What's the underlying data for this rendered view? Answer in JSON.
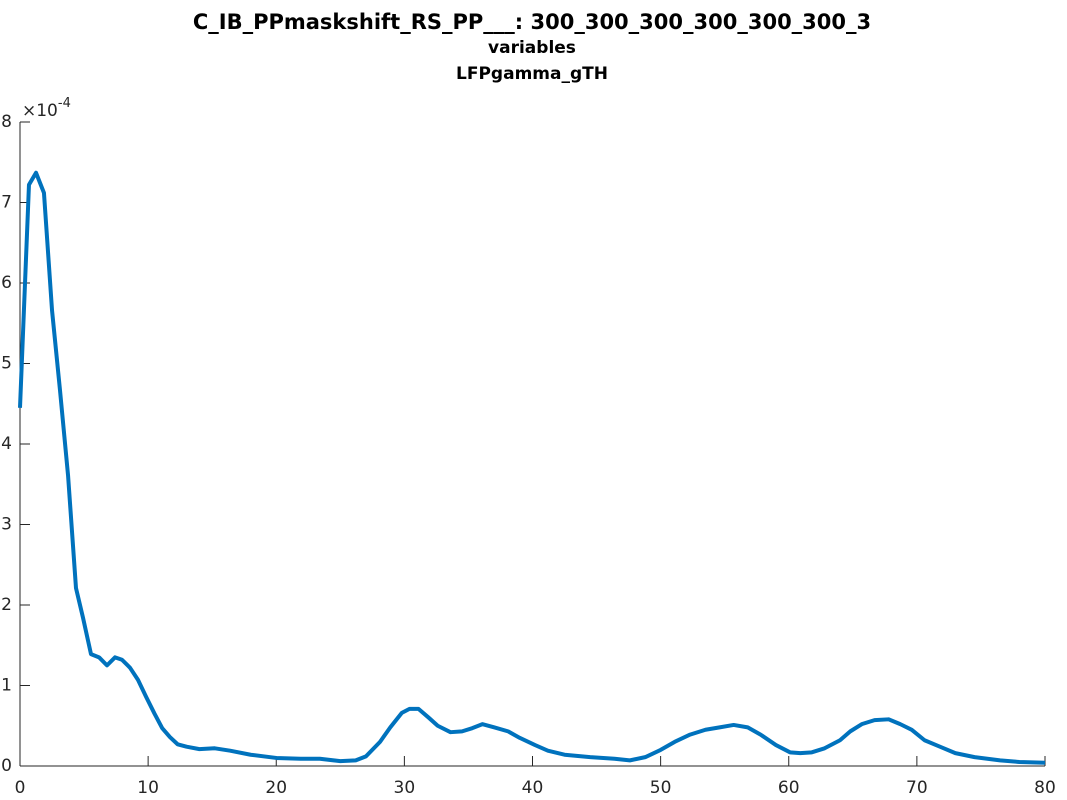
{
  "chart_data": {
    "type": "line",
    "title": "C_IB_PPmaskshift_RS_PP___: 300_300_300_300_300_300_3",
    "subtitle": [
      "variables",
      "LFPgamma_gTH"
    ],
    "y_multiplier": "×10",
    "y_exponent": "-4",
    "color": "#0072bd",
    "x": [
      0,
      0.7,
      1.25,
      1.87,
      2.5,
      3.12,
      3.75,
      4.37,
      4.92,
      5.54,
      6.17,
      6.79,
      7.42,
      7.96,
      8.59,
      9.21,
      9.84,
      10.5,
      11.1,
      11.7,
      12.3,
      13,
      14,
      15.2,
      16.4,
      18,
      20,
      21.9,
      23.4,
      25,
      26.2,
      27,
      28.1,
      28.9,
      29.8,
      30.4,
      31.1,
      31.9,
      32.6,
      33.6,
      34.5,
      35.3,
      36.1,
      37,
      38.1,
      39,
      40.2,
      41.2,
      42.5,
      44.5,
      46.4,
      47.6,
      48.8,
      50,
      51.1,
      52.3,
      53.5,
      54.6,
      55.7,
      56.8,
      57.8,
      59,
      60.1,
      60.9,
      61.8,
      62.8,
      64,
      64.8,
      65.7,
      66.7,
      67.8,
      68.7,
      69.6,
      70.6,
      71.8,
      73,
      74.5,
      76.5,
      78,
      80
    ],
    "values": [
      4.45,
      7.22,
      7.37,
      7.12,
      5.66,
      4.67,
      3.61,
      2.21,
      1.84,
      1.39,
      1.35,
      1.25,
      1.35,
      1.32,
      1.22,
      1.07,
      0.86,
      0.65,
      0.47,
      0.36,
      0.27,
      0.24,
      0.21,
      0.22,
      0.19,
      0.14,
      0.1,
      0.09,
      0.09,
      0.06,
      0.07,
      0.12,
      0.3,
      0.48,
      0.66,
      0.71,
      0.71,
      0.6,
      0.5,
      0.42,
      0.43,
      0.47,
      0.52,
      0.48,
      0.43,
      0.35,
      0.26,
      0.19,
      0.14,
      0.11,
      0.09,
      0.07,
      0.11,
      0.2,
      0.3,
      0.39,
      0.45,
      0.48,
      0.51,
      0.48,
      0.39,
      0.26,
      0.17,
      0.16,
      0.17,
      0.22,
      0.32,
      0.43,
      0.52,
      0.57,
      0.58,
      0.52,
      0.45,
      0.32,
      0.24,
      0.16,
      0.11,
      0.07,
      0.05,
      0.04
    ],
    "xlim": [
      0,
      80
    ],
    "xticks": [
      0,
      10,
      20,
      30,
      40,
      50,
      60,
      70,
      80
    ],
    "ylim": [
      0,
      8
    ],
    "yticks": [
      0,
      1,
      2,
      3,
      4,
      5,
      6,
      7,
      8
    ],
    "grid": false
  }
}
